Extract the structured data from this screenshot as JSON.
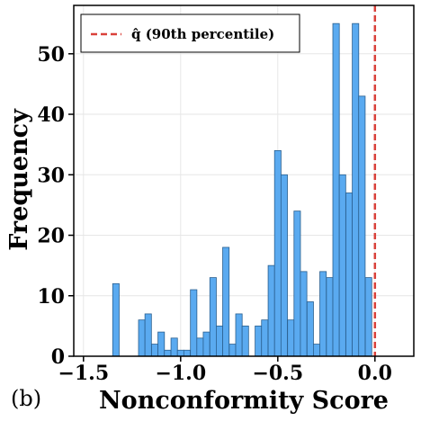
{
  "panel_label": "(b)",
  "chart_data": {
    "type": "bar",
    "title": "",
    "xlabel": "Nonconformity Score",
    "ylabel": "Frequency",
    "xlim": [
      -1.55,
      0.2
    ],
    "ylim": [
      0,
      58
    ],
    "xticks": [
      -1.5,
      -1.0,
      -0.5,
      0.0
    ],
    "xtick_labels": [
      "−1.5",
      "−1.0",
      "−0.5",
      "0.0"
    ],
    "yticks": [
      0,
      10,
      20,
      30,
      40,
      50
    ],
    "ytick_labels": [
      "0",
      "10",
      "20",
      "30",
      "40",
      "50"
    ],
    "grid": true,
    "legend": {
      "placement": "top-left",
      "entries": [
        "q̂ (90th percentile)"
      ]
    },
    "bin_width": 0.0333,
    "bin_centers": [
      -1.333,
      -1.2,
      -1.167,
      -1.133,
      -1.1,
      -1.067,
      -1.033,
      -1.0,
      -0.967,
      -0.933,
      -0.9,
      -0.867,
      -0.833,
      -0.8,
      -0.767,
      -0.733,
      -0.7,
      -0.667,
      -0.6,
      -0.567,
      -0.533,
      -0.5,
      -0.467,
      -0.433,
      -0.4,
      -0.367,
      -0.333,
      -0.3,
      -0.267,
      -0.233,
      -0.2,
      -0.167,
      -0.133,
      -0.1,
      -0.067,
      -0.033,
      0.0,
      0.033,
      0.067
    ],
    "values": [
      12,
      6,
      7,
      2,
      4,
      1,
      3,
      1,
      1,
      11,
      3,
      4,
      13,
      5,
      18,
      2,
      7,
      5,
      5,
      6,
      15,
      34,
      30,
      6,
      24,
      14,
      9,
      2,
      14,
      13,
      55,
      30,
      27,
      55,
      43,
      13,
      0,
      0,
      0
    ],
    "quantile_line": {
      "x": 0.0,
      "label": "q̂ (90th percentile)",
      "color": "#d9413a"
    },
    "bar_color": "#5aaaf0",
    "bar_edge_color": "#2a5f8f"
  }
}
